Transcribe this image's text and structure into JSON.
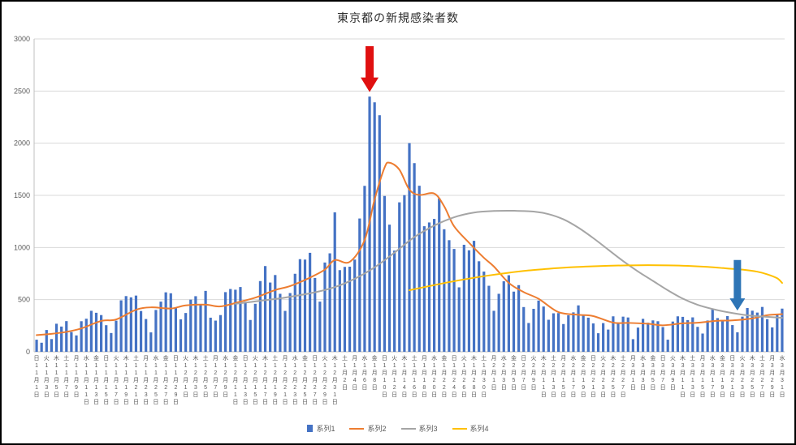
{
  "title": "東京都の新規感染者数",
  "y_axis": {
    "min": 0,
    "max": 3000,
    "step": 500,
    "ticks": [
      "0",
      "500",
      "1000",
      "1500",
      "2000",
      "2500",
      "3000"
    ],
    "label_color": "#595959"
  },
  "colors": {
    "grid": "#d9d9d9",
    "axis": "#bfbfbf",
    "bar": "#4472c4",
    "line2": "#ed7d31",
    "line3": "#a5a5a5",
    "line4": "#ffc000"
  },
  "legend": [
    {
      "label": "系列1",
      "type": "bar",
      "color": "#4472c4"
    },
    {
      "label": "系列2",
      "type": "line",
      "color": "#ed7d31"
    },
    {
      "label": "系列3",
      "type": "line",
      "color": "#a5a5a5"
    },
    {
      "label": "系列4",
      "type": "line",
      "color": "#ffc000"
    }
  ],
  "annotations": [
    {
      "name": "red-arrow",
      "shape": "arrow-down",
      "color": "#e01010",
      "day": 67,
      "tail_value": 2930,
      "tip_value": 2490,
      "shaft_w": 10,
      "head_w": 22,
      "head_h": 18
    },
    {
      "name": "blue-arrow",
      "shape": "arrow-down",
      "color": "#2e75b6",
      "day": 141,
      "tail_value": 880,
      "tip_value": 395,
      "shaft_w": 9,
      "head_w": 19,
      "head_h": 15
    }
  ],
  "chart_data": {
    "type": "bar",
    "title": "東京都の新規感染者数",
    "xlabel": "",
    "ylabel": "",
    "ylim": [
      0,
      3000
    ],
    "grid": true,
    "legend_position": "bottom",
    "x_start": "11月1日",
    "x_end": "3月31日",
    "x_tick_labels": [
      "日11月1日",
      "火11月3日",
      "木11月5日",
      "土11月7日",
      "月11月9日",
      "水11月11日",
      "金11月13日",
      "日11月15日",
      "火11月17日",
      "木11月19日",
      "土11月21日",
      "月11月23日",
      "水11月25日",
      "金11月27日",
      "日11月29日",
      "火12月1日",
      "木12月3日",
      "土12月5日",
      "月12月7日",
      "水12月9日",
      "金12月11日",
      "日12月13日",
      "火12月15日",
      "木12月17日",
      "土12月19日",
      "月12月21日",
      "水12月23日",
      "金12月25日",
      "日12月27日",
      "火12月29日",
      "木12月31日",
      "土1月2日",
      "月1月4日",
      "水1月6日",
      "金1月8日",
      "日1月10日",
      "火1月12日",
      "木1月14日",
      "土1月16日",
      "月1月18日",
      "水1月20日",
      "金1月22日",
      "日1月24日",
      "火1月26日",
      "木1月28日",
      "土1月30日",
      "月2月1日",
      "水2月3日",
      "金2月5日",
      "日2月7日",
      "火2月9日",
      "木2月11日",
      "土2月13日",
      "月2月15日",
      "水2月17日",
      "金2月19日",
      "日2月21日",
      "火2月23日",
      "木2月25日",
      "土2月27日",
      "月3月1日",
      "水3月3日",
      "金3月5日",
      "日3月7日",
      "火3月9日",
      "木3月11日",
      "土3月13日",
      "月3月15日",
      "水3月17日",
      "金3月19日",
      "日3月21日",
      "火3月23日",
      "木3月25日",
      "土3月27日",
      "月3月29日",
      "水3月31日"
    ],
    "series": [
      {
        "name": "系列1",
        "type": "bar",
        "color": "#4472c4",
        "values": [
          116,
          87,
          209,
          122,
          269,
          242,
          294,
          189,
          157,
          293,
          317,
          393,
          374,
          352,
          255,
          180,
          298,
          493,
          534,
          522,
          539,
          391,
          314,
          186,
          401,
          481,
          570,
          561,
          418,
          311,
          372,
          500,
          533,
          449,
          584,
          327,
          299,
          352,
          572,
          602,
          595,
          621,
          480,
          305,
          460,
          678,
          822,
          664,
          736,
          556,
          392,
          563,
          748,
          888,
          884,
          949,
          708,
          481,
          856,
          944,
          1337,
          783,
          814,
          816,
          884,
          1278,
          1591,
          2447,
          2392,
          2268,
          1494,
          1219,
          970,
          1433,
          1502,
          2001,
          1809,
          1592,
          1204,
          1240,
          1274,
          1471,
          1175,
          1070,
          986,
          618,
          1026,
          973,
          1064,
          868,
          769,
          633,
          393,
          556,
          676,
          734,
          577,
          639,
          429,
          276,
          412,
          491,
          434,
          307,
          369,
          371,
          266,
          350,
          378,
          445,
          353,
          327,
          272,
          178,
          275,
          213,
          340,
          270,
          337,
          329,
          121,
          232,
          316,
          279,
          301,
          293,
          237,
          116,
          290,
          340,
          335,
          304,
          330,
          239,
          175,
          300,
          409,
          323,
          303,
          342,
          256,
          187,
          337,
          420,
          394,
          376,
          430,
          313,
          234,
          364,
          414
        ]
      },
      {
        "name": "系列2",
        "type": "line",
        "color": "#ed7d31",
        "points": [
          [
            0,
            160
          ],
          [
            3,
            172
          ],
          [
            6,
            191
          ],
          [
            9,
            224
          ],
          [
            13,
            296
          ],
          [
            16,
            310
          ],
          [
            20,
            403
          ],
          [
            23,
            426
          ],
          [
            27,
            415
          ],
          [
            30,
            445
          ],
          [
            34,
            452
          ],
          [
            37,
            435
          ],
          [
            41,
            481
          ],
          [
            44,
            519
          ],
          [
            48,
            592
          ],
          [
            51,
            630
          ],
          [
            55,
            711
          ],
          [
            58,
            788
          ],
          [
            60,
            880
          ],
          [
            63,
            862
          ],
          [
            66,
            1072
          ],
          [
            68,
            1460
          ],
          [
            70,
            1765
          ],
          [
            71,
            1813
          ],
          [
            73,
            1746
          ],
          [
            75,
            1555
          ],
          [
            77,
            1504
          ],
          [
            80,
            1517
          ],
          [
            82,
            1395
          ],
          [
            84,
            1203
          ],
          [
            87,
            1046
          ],
          [
            90,
            901
          ],
          [
            92,
            818
          ],
          [
            95,
            661
          ],
          [
            98,
            572
          ],
          [
            101,
            508
          ],
          [
            105,
            380
          ],
          [
            109,
            355
          ],
          [
            112,
            342
          ],
          [
            116,
            280
          ],
          [
            119,
            277
          ],
          [
            123,
            269
          ],
          [
            126,
            254
          ],
          [
            130,
            273
          ],
          [
            133,
            279
          ],
          [
            137,
            297
          ],
          [
            140,
            301
          ],
          [
            144,
            320
          ],
          [
            147,
            351
          ],
          [
            150,
            361
          ]
        ]
      },
      {
        "name": "系列3",
        "type": "line",
        "color": "#a5a5a5",
        "points": [
          [
            40,
            460
          ],
          [
            46,
            495
          ],
          [
            50,
            520
          ],
          [
            56,
            570
          ],
          [
            60,
            620
          ],
          [
            64,
            700
          ],
          [
            68,
            810
          ],
          [
            72,
            950
          ],
          [
            76,
            1100
          ],
          [
            80,
            1210
          ],
          [
            84,
            1290
          ],
          [
            88,
            1335
          ],
          [
            92,
            1350
          ],
          [
            96,
            1352
          ],
          [
            100,
            1345
          ],
          [
            103,
            1320
          ],
          [
            106,
            1270
          ],
          [
            109,
            1190
          ],
          [
            112,
            1090
          ],
          [
            115,
            980
          ],
          [
            118,
            870
          ],
          [
            121,
            770
          ],
          [
            124,
            680
          ],
          [
            127,
            590
          ],
          [
            130,
            510
          ],
          [
            133,
            450
          ],
          [
            136,
            410
          ],
          [
            139,
            380
          ],
          [
            143,
            350
          ],
          [
            147,
            335
          ],
          [
            150,
            325
          ]
        ]
      },
      {
        "name": "系列4",
        "type": "line",
        "color": "#ffc000",
        "points": [
          [
            75,
            590
          ],
          [
            79,
            630
          ],
          [
            83,
            668
          ],
          [
            87,
            702
          ],
          [
            91,
            732
          ],
          [
            95,
            758
          ],
          [
            99,
            780
          ],
          [
            103,
            796
          ],
          [
            107,
            809
          ],
          [
            111,
            818
          ],
          [
            115,
            825
          ],
          [
            119,
            829
          ],
          [
            123,
            831
          ],
          [
            127,
            829
          ],
          [
            131,
            824
          ],
          [
            135,
            814
          ],
          [
            139,
            799
          ],
          [
            142,
            788
          ],
          [
            145,
            768
          ],
          [
            147,
            743
          ],
          [
            149,
            705
          ],
          [
            150,
            660
          ]
        ]
      }
    ]
  }
}
